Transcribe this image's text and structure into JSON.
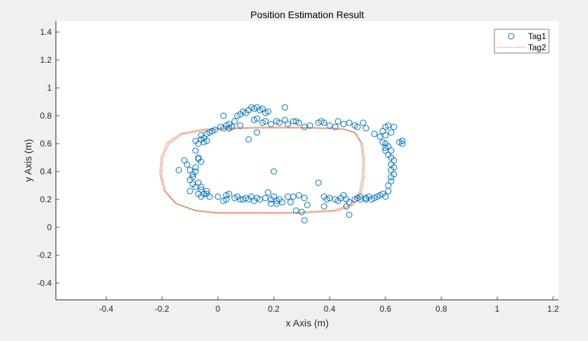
{
  "colors": {
    "figure_bg": "#f0f0f0",
    "axes_bg": "#ffffff",
    "axis": "#262626",
    "tag1": "#0072bd",
    "tag2": "#d95319"
  },
  "chart_data": {
    "type": "scatter",
    "title": "Position Estimation Result",
    "xlabel": "x Axis (m)",
    "ylabel": "y Axis (m)",
    "xlim": [
      -0.58,
      1.22
    ],
    "ylim": [
      -0.52,
      1.48
    ],
    "xticks": [
      -0.4,
      -0.2,
      0,
      0.2,
      0.4,
      0.6,
      0.8,
      1,
      1.2
    ],
    "yticks": [
      -0.4,
      -0.2,
      0,
      0.2,
      0.4,
      0.6,
      0.8,
      1,
      1.2,
      1.4
    ],
    "xtick_labels": [
      "-0.4",
      "-0.2",
      "0",
      "0.2",
      "0.4",
      "0.6",
      "0.8",
      "1",
      "1.2"
    ],
    "ytick_labels": [
      "-0.4",
      "-0.2",
      "0",
      "0.2",
      "0.4",
      "0.6",
      "0.8",
      "1",
      "1.2",
      "1.4"
    ],
    "grid": false,
    "legend": "top-right",
    "series": [
      {
        "name": "Tag1",
        "marker": "circle",
        "points": [
          [
            -0.14,
            0.41
          ],
          [
            -0.12,
            0.48
          ],
          [
            -0.11,
            0.45
          ],
          [
            -0.1,
            0.41
          ],
          [
            -0.09,
            0.38
          ],
          [
            -0.1,
            0.34
          ],
          [
            -0.09,
            0.31
          ],
          [
            -0.1,
            0.26
          ],
          [
            -0.08,
            0.29
          ],
          [
            -0.07,
            0.24
          ],
          [
            -0.06,
            0.22
          ],
          [
            -0.04,
            0.24
          ],
          [
            -0.03,
            0.22
          ],
          [
            -0.06,
            0.27
          ],
          [
            -0.09,
            0.36
          ],
          [
            -0.08,
            0.43
          ],
          [
            -0.07,
            0.49
          ],
          [
            -0.08,
            0.55
          ],
          [
            -0.08,
            0.62
          ],
          [
            -0.07,
            0.6
          ],
          [
            -0.06,
            0.63
          ],
          [
            -0.05,
            0.61
          ],
          [
            -0.06,
            0.66
          ],
          [
            -0.05,
            0.64
          ],
          [
            -0.04,
            0.67
          ],
          [
            -0.03,
            0.68
          ],
          [
            -0.02,
            0.69
          ],
          [
            -0.01,
            0.7
          ],
          [
            0.01,
            0.72
          ],
          [
            0.02,
            0.71
          ],
          [
            0.03,
            0.73
          ],
          [
            0.04,
            0.74
          ],
          [
            0.05,
            0.72
          ],
          [
            0.04,
            0.71
          ],
          [
            -0.04,
            0.62
          ],
          [
            -0.06,
            0.47
          ],
          [
            -0.07,
            0.5
          ],
          [
            -0.08,
            0.4
          ],
          [
            -0.07,
            0.32
          ],
          [
            -0.06,
            0.29
          ],
          [
            -0.04,
            0.26
          ],
          [
            -0.05,
            0.24
          ],
          [
            0,
            0.22
          ],
          [
            0.03,
            0.23
          ],
          [
            0.04,
            0.24
          ],
          [
            0.06,
            0.21
          ],
          [
            0.07,
            0.22
          ],
          [
            0.08,
            0.2
          ],
          [
            0.1,
            0.21
          ],
          [
            0.12,
            0.22
          ],
          [
            0.14,
            0.21
          ],
          [
            0.15,
            0.2
          ],
          [
            0.13,
            0.19
          ],
          [
            0.11,
            0.2
          ],
          [
            0.09,
            0.2
          ],
          [
            0.03,
            0.2
          ],
          [
            0.02,
            0.19
          ],
          [
            0.17,
            0.21
          ],
          [
            0.19,
            0.2
          ],
          [
            0.2,
            0.22
          ],
          [
            0.21,
            0.19
          ],
          [
            0.22,
            0.2
          ],
          [
            0.23,
            0.18
          ],
          [
            0.21,
            0.17
          ],
          [
            0.19,
            0.17
          ],
          [
            0.18,
            0.25
          ],
          [
            0.25,
            0.22
          ],
          [
            0.26,
            0.18
          ],
          [
            0.27,
            0.22
          ],
          [
            0.29,
            0.23
          ],
          [
            0.31,
            0.21
          ],
          [
            0.28,
            0.12
          ],
          [
            0.3,
            0.11
          ],
          [
            0.32,
            0.16
          ],
          [
            0.31,
            0.05
          ],
          [
            0.2,
            0.4
          ],
          [
            0.36,
            0.32
          ],
          [
            0.38,
            0.22
          ],
          [
            0.38,
            0.15
          ],
          [
            0.39,
            0.2
          ],
          [
            0.4,
            0.21
          ],
          [
            0.42,
            0.2
          ],
          [
            0.43,
            0.19
          ],
          [
            0.44,
            0.21
          ],
          [
            0.45,
            0.23
          ],
          [
            0.46,
            0.2
          ],
          [
            0.47,
            0.18
          ],
          [
            0.46,
            0.15
          ],
          [
            0.47,
            0.09
          ],
          [
            0.49,
            0.2
          ],
          [
            0.5,
            0.21
          ],
          [
            0.51,
            0.2
          ],
          [
            0.53,
            0.21
          ],
          [
            0.54,
            0.22
          ],
          [
            0.55,
            0.2
          ],
          [
            0.56,
            0.21
          ],
          [
            0.57,
            0.22
          ],
          [
            0.58,
            0.23
          ],
          [
            0.59,
            0.24
          ],
          [
            0.6,
            0.22
          ],
          [
            0.61,
            0.26
          ],
          [
            0.61,
            0.3
          ],
          [
            0.62,
            0.33
          ],
          [
            0.62,
            0.36
          ],
          [
            0.63,
            0.38
          ],
          [
            0.62,
            0.41
          ],
          [
            0.63,
            0.43
          ],
          [
            0.62,
            0.45
          ],
          [
            0.63,
            0.48
          ],
          [
            0.62,
            0.5
          ],
          [
            0.61,
            0.52
          ],
          [
            0.6,
            0.55
          ],
          [
            0.61,
            0.58
          ],
          [
            0.6,
            0.6
          ],
          [
            0.59,
            0.61
          ],
          [
            0.58,
            0.65
          ],
          [
            0.6,
            0.66
          ],
          [
            0.59,
            0.69
          ],
          [
            0.6,
            0.72
          ],
          [
            0.61,
            0.73
          ],
          [
            0.63,
            0.72
          ],
          [
            0.62,
            0.68
          ],
          [
            0.65,
            0.61
          ],
          [
            0.66,
            0.6
          ],
          [
            0.66,
            0.62
          ],
          [
            0.56,
            0.67
          ],
          [
            0.52,
            0.75
          ],
          [
            0.53,
            0.71
          ],
          [
            0.5,
            0.72
          ],
          [
            0.49,
            0.73
          ],
          [
            0.47,
            0.75
          ],
          [
            0.45,
            0.74
          ],
          [
            0.43,
            0.76
          ],
          [
            0.42,
            0.72
          ],
          [
            0.4,
            0.73
          ],
          [
            0.38,
            0.75
          ],
          [
            0.37,
            0.76
          ],
          [
            0.36,
            0.75
          ],
          [
            0.33,
            0.73
          ],
          [
            0.31,
            0.72
          ],
          [
            0.29,
            0.75
          ],
          [
            0.28,
            0.76
          ],
          [
            0.27,
            0.76
          ],
          [
            0.25,
            0.74
          ],
          [
            0.24,
            0.77
          ],
          [
            0.22,
            0.75
          ],
          [
            0.21,
            0.76
          ],
          [
            0.19,
            0.74
          ],
          [
            0.17,
            0.76
          ],
          [
            0.16,
            0.75
          ],
          [
            0.14,
            0.78
          ],
          [
            0.13,
            0.77
          ],
          [
            0.14,
            0.68
          ],
          [
            0.11,
            0.63
          ],
          [
            0.06,
            0.76
          ],
          [
            0.07,
            0.8
          ],
          [
            0.08,
            0.81
          ],
          [
            0.09,
            0.83
          ],
          [
            0.1,
            0.82
          ],
          [
            0.11,
            0.84
          ],
          [
            0.12,
            0.86
          ],
          [
            0.13,
            0.85
          ],
          [
            0.14,
            0.86
          ],
          [
            0.15,
            0.84
          ],
          [
            0.16,
            0.85
          ],
          [
            0.17,
            0.82
          ],
          [
            0.18,
            0.83
          ],
          [
            0.24,
            0.86
          ],
          [
            0.02,
            0.8
          ],
          [
            0.04,
            0.71
          ],
          [
            0.08,
            0.73
          ],
          [
            0.53,
            0.2
          ],
          [
            0.51,
            0.22
          ],
          [
            0.6,
            0.57
          ],
          [
            0.62,
            0.55
          ]
        ]
      },
      {
        "name": "Tag2",
        "line": "dotted",
        "points": [
          [
            0.06,
            0.71
          ],
          [
            0.15,
            0.715
          ],
          [
            0.25,
            0.715
          ],
          [
            0.35,
            0.713
          ],
          [
            0.45,
            0.705
          ],
          [
            0.49,
            0.68
          ],
          [
            0.515,
            0.6
          ],
          [
            0.522,
            0.48
          ],
          [
            0.52,
            0.36
          ],
          [
            0.51,
            0.25
          ],
          [
            0.48,
            0.16
          ],
          [
            0.42,
            0.12
          ],
          [
            0.3,
            0.105
          ],
          [
            0.2,
            0.103
          ],
          [
            0.1,
            0.103
          ],
          [
            0.0,
            0.103
          ],
          [
            -0.08,
            0.12
          ],
          [
            -0.15,
            0.17
          ],
          [
            -0.19,
            0.26
          ],
          [
            -0.205,
            0.38
          ],
          [
            -0.2,
            0.5
          ],
          [
            -0.18,
            0.6
          ],
          [
            -0.13,
            0.67
          ],
          [
            -0.05,
            0.7
          ],
          [
            0.06,
            0.71
          ]
        ]
      }
    ]
  }
}
